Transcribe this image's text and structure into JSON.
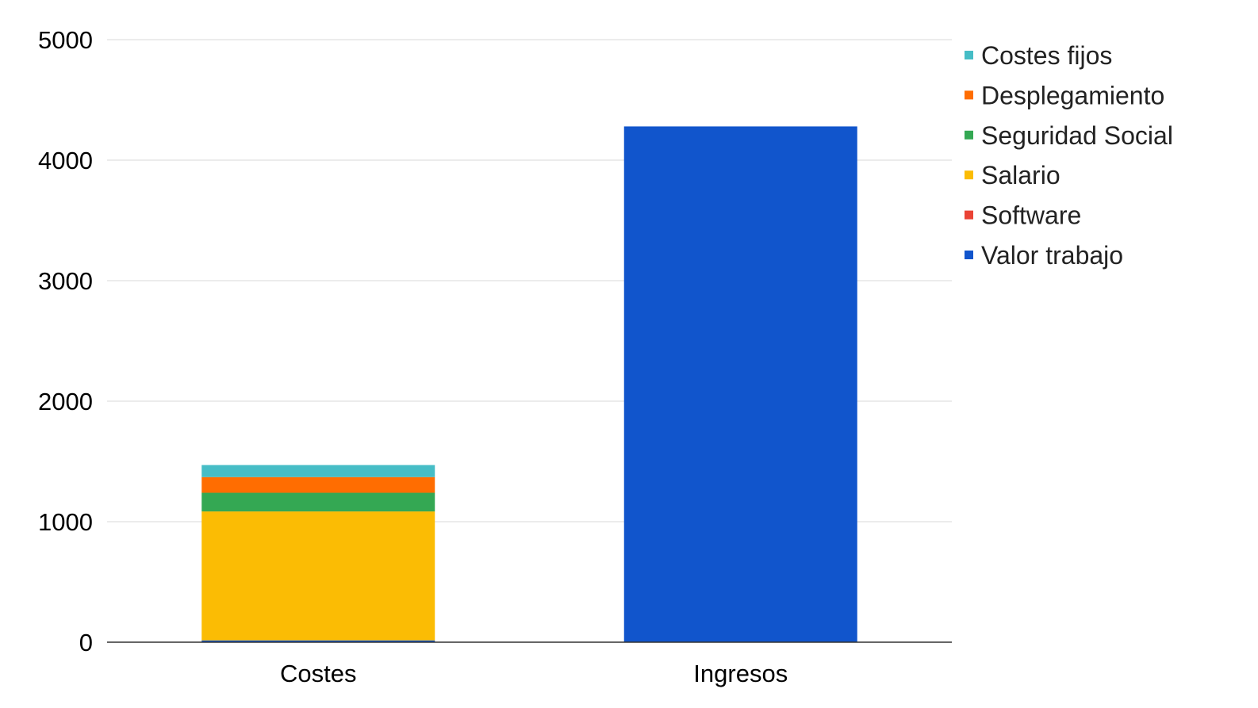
{
  "chart_data": {
    "type": "bar",
    "stacked": true,
    "categories": [
      "Costes",
      "Ingresos"
    ],
    "series": [
      {
        "name": "Valor trabajo",
        "color": "#1155cc",
        "values": [
          15,
          4280
        ]
      },
      {
        "name": "Software",
        "color": "#ea4335",
        "values": [
          0,
          0
        ]
      },
      {
        "name": "Salario",
        "color": "#fbbc04",
        "values": [
          1070,
          0
        ]
      },
      {
        "name": "Seguridad Social",
        "color": "#34a853",
        "values": [
          155,
          0
        ]
      },
      {
        "name": "Desplegamiento",
        "color": "#ff6d01",
        "values": [
          130,
          0
        ]
      },
      {
        "name": "Costes fijos",
        "color": "#46bdc6",
        "values": [
          100,
          0
        ]
      }
    ],
    "ylim": [
      0,
      5000
    ],
    "yticks": [
      "0",
      "1000",
      "2000",
      "3000",
      "4000",
      "5000"
    ],
    "grid": true,
    "legend_position": "right",
    "title": "",
    "xlabel": "",
    "ylabel": ""
  }
}
